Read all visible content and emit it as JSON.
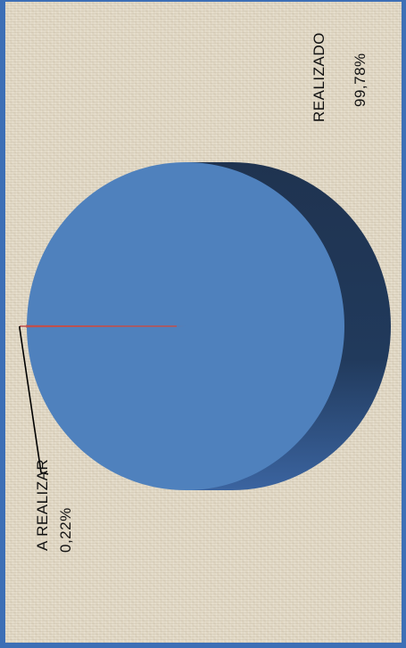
{
  "chart_data": {
    "type": "pie",
    "style": "3d, rotated 90 degrees counter-clockwise",
    "slices": [
      {
        "label": "REALIZADO",
        "value_text": "99,78%",
        "value": 99.78,
        "color": "#4f81bd"
      },
      {
        "label": "A REALIZAR",
        "value_text": "0,22%",
        "value": 0.22,
        "color": "#c0504d"
      }
    ],
    "colors": {
      "pie_top": "#4f81bd",
      "pie_side": "#1f3350",
      "leader_line": "#000000",
      "frame": "#3d6fb6",
      "background": "#e2d9c6"
    }
  }
}
